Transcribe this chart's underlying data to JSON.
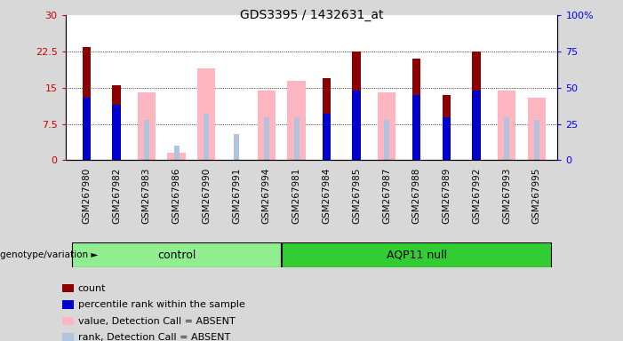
{
  "title": "GDS3395 / 1432631_at",
  "samples": [
    "GSM267980",
    "GSM267982",
    "GSM267983",
    "GSM267986",
    "GSM267990",
    "GSM267991",
    "GSM267994",
    "GSM267981",
    "GSM267984",
    "GSM267985",
    "GSM267987",
    "GSM267988",
    "GSM267989",
    "GSM267992",
    "GSM267993",
    "GSM267995"
  ],
  "groups": [
    "control",
    "control",
    "control",
    "control",
    "control",
    "control",
    "control",
    "AQP11 null",
    "AQP11 null",
    "AQP11 null",
    "AQP11 null",
    "AQP11 null",
    "AQP11 null",
    "AQP11 null",
    "AQP11 null",
    "AQP11 null"
  ],
  "count_values": [
    23.5,
    15.5,
    0,
    0,
    0,
    0,
    0,
    0,
    17.0,
    22.5,
    0,
    21.0,
    13.5,
    22.5,
    0,
    0
  ],
  "percentile_rank_pct": [
    43.0,
    38.0,
    0,
    0,
    0,
    0,
    0,
    0,
    32.0,
    48.0,
    0,
    45.0,
    30.0,
    48.0,
    0,
    0
  ],
  "absent_value": [
    0,
    0,
    14.0,
    1.5,
    19.0,
    0,
    14.5,
    16.5,
    0,
    0,
    14.0,
    0,
    0,
    0,
    14.5,
    13.0
  ],
  "absent_rank_pct": [
    0,
    0,
    28.0,
    10.0,
    32.0,
    18.0,
    30.0,
    30.0,
    0,
    0,
    28.0,
    0,
    0,
    0,
    30.0,
    28.0
  ],
  "ylim_left": [
    0,
    30
  ],
  "ylim_right": [
    0,
    100
  ],
  "yticks_left": [
    0,
    7.5,
    15,
    22.5,
    30
  ],
  "yticks_right": [
    0,
    25,
    50,
    75,
    100
  ],
  "bar_color_count": "#8B0000",
  "bar_color_rank": "#0000CD",
  "bar_color_absent_value": "#FFB6C1",
  "bar_color_absent_rank": "#B0C4DE",
  "control_color": "#90EE90",
  "aqp11_color": "#32CD32",
  "legend_items": [
    "count",
    "percentile rank within the sample",
    "value, Detection Call = ABSENT",
    "rank, Detection Call = ABSENT"
  ],
  "legend_colors": [
    "#8B0000",
    "#0000CD",
    "#FFB6C1",
    "#B0C4DE"
  ],
  "fig_bg": "#D8D8D8"
}
